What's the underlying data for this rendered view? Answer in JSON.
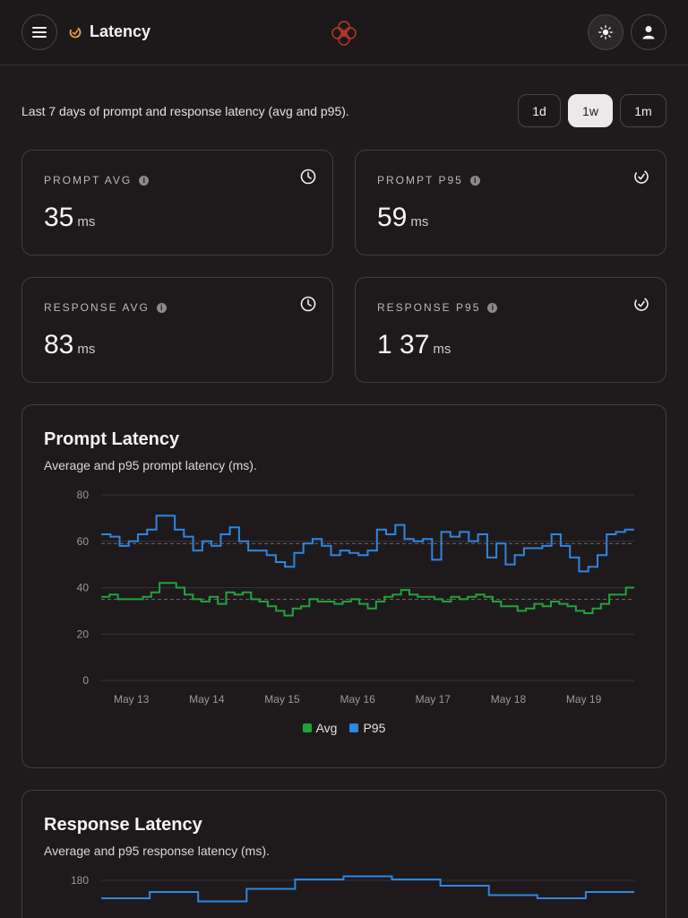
{
  "header": {
    "title": "Latency",
    "menu_icon": "hamburger-menu-icon",
    "title_icon": "gauge-icon",
    "logo_icon": "circles-logo-icon",
    "theme_icon": "sun-icon",
    "user_icon": "user-icon",
    "accent_color": "#e8a33a",
    "logo_color": "#c0392b"
  },
  "toolbar": {
    "description": "Last 7 days of prompt and response latency (avg and p95).",
    "ranges": [
      "1d",
      "1w",
      "1m"
    ],
    "selected_range": "1w"
  },
  "stats": [
    {
      "label": "PROMPT AVG",
      "value": "35",
      "unit": "ms",
      "icon": "clock-icon"
    },
    {
      "label": "PROMPT P95",
      "value": "59",
      "unit": "ms",
      "icon": "gauge-icon"
    },
    {
      "label": "RESPONSE AVG",
      "value": "83",
      "unit": "ms",
      "icon": "clock-icon"
    },
    {
      "label": "RESPONSE P95",
      "value": "1 37",
      "unit": "ms",
      "icon": "gauge-icon"
    }
  ],
  "prompt_chart": {
    "title": "Prompt Latency",
    "subtitle": "Average and p95 prompt latency (ms).",
    "legend": [
      "Avg",
      "P95"
    ]
  },
  "response_chart": {
    "title": "Response Latency",
    "subtitle": "Average and p95 response latency (ms).",
    "y_top_label": "180"
  },
  "chart_data": [
    {
      "type": "line",
      "step": true,
      "x_ticks": [
        "May 13",
        "May 14",
        "May 15",
        "May 16",
        "May 17",
        "May 18",
        "May 19"
      ],
      "y_ticks": [
        0,
        20,
        40,
        60,
        80
      ],
      "ylim": [
        0,
        80
      ],
      "x_span_days": [
        12.6,
        19.67
      ],
      "reference_lines": {
        "avg": 35,
        "p95": 59
      },
      "grid": true,
      "legend_position": "bottom",
      "series": [
        {
          "name": "Avg",
          "color": "#22a33a",
          "values": [
            36,
            37,
            35,
            35,
            35,
            36,
            38,
            42,
            42,
            40,
            37,
            35,
            34,
            36,
            33,
            38,
            37,
            38,
            35,
            34,
            32,
            30,
            28,
            31,
            32,
            35,
            34,
            34,
            33,
            34,
            35,
            33,
            31,
            34,
            36,
            37,
            39,
            37,
            36,
            36,
            35,
            34,
            36,
            35,
            36,
            37,
            36,
            34,
            32,
            32,
            30,
            31,
            33,
            32,
            34,
            33,
            32,
            30,
            29,
            31,
            33,
            37,
            37,
            40
          ]
        },
        {
          "name": "P95",
          "color": "#2f86e0",
          "values": [
            63,
            62,
            58,
            60,
            63,
            65,
            71,
            71,
            65,
            62,
            56,
            60,
            58,
            63,
            66,
            60,
            56,
            56,
            54,
            51,
            49,
            55,
            59,
            61,
            58,
            54,
            56,
            55,
            54,
            56,
            65,
            63,
            67,
            61,
            60,
            61,
            52,
            64,
            62,
            64,
            60,
            63,
            53,
            59,
            50,
            54,
            57,
            57,
            58,
            63,
            58,
            53,
            47,
            49,
            54,
            63,
            64,
            65
          ]
        }
      ]
    },
    {
      "type": "line",
      "step": true,
      "y_ticks": [
        180
      ],
      "series": [
        {
          "name": "P95",
          "color": "#2f86e0",
          "values": [
            180,
            182,
            179,
            183,
            186,
            187,
            186,
            184,
            181,
            180,
            182
          ]
        }
      ]
    }
  ]
}
